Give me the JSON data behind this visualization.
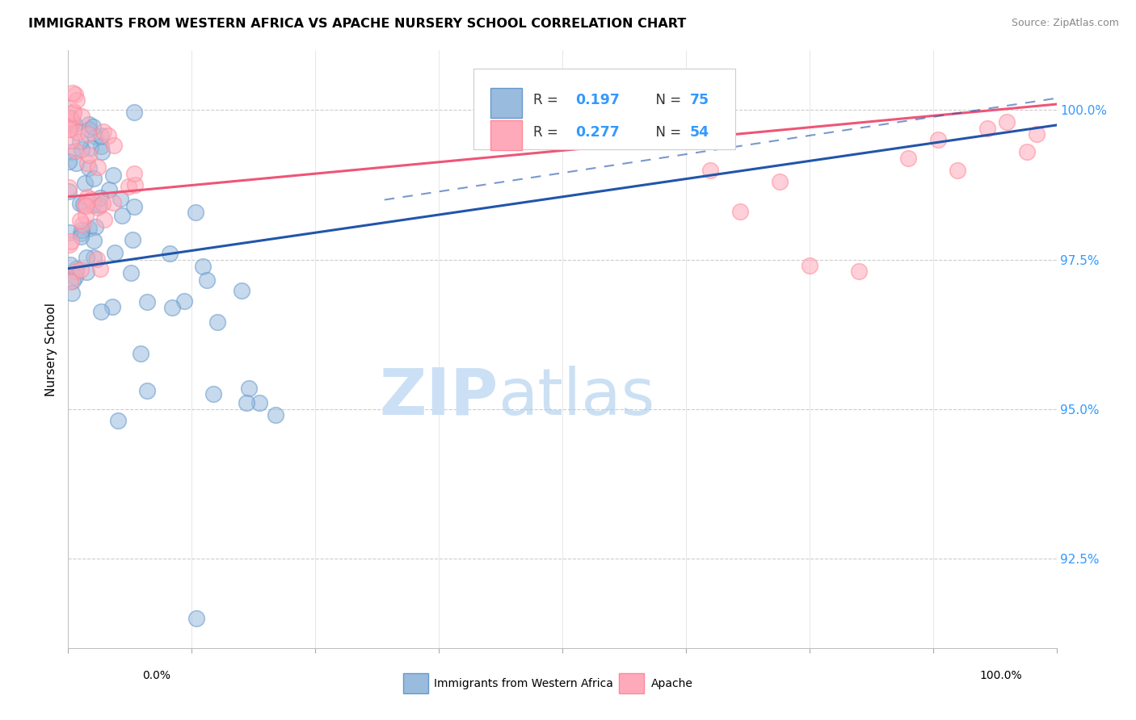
{
  "title": "IMMIGRANTS FROM WESTERN AFRICA VS APACHE NURSERY SCHOOL CORRELATION CHART",
  "source": "Source: ZipAtlas.com",
  "ylabel": "Nursery School",
  "ytick_labels": [
    "92.5%",
    "95.0%",
    "97.5%",
    "100.0%"
  ],
  "ytick_values": [
    92.5,
    95.0,
    97.5,
    100.0
  ],
  "legend_blue_r": "0.197",
  "legend_blue_n": "75",
  "legend_pink_r": "0.277",
  "legend_pink_n": "54",
  "legend_blue_label": "Immigrants from Western Africa",
  "legend_pink_label": "Apache",
  "blue_fill": "#99BBDD",
  "blue_edge": "#6699CC",
  "pink_fill": "#FFAABB",
  "pink_edge": "#FF8899",
  "blue_line_color": "#2255AA",
  "pink_line_color": "#EE5577",
  "r_color": "#3399FF",
  "n_color": "#3399FF",
  "xlim": [
    0,
    100
  ],
  "ylim": [
    91.0,
    101.0
  ],
  "blue_line_y0": 97.35,
  "blue_line_y1": 99.75,
  "pink_line_y0": 98.55,
  "pink_line_y1": 100.1,
  "blue_dash_x0": 32,
  "blue_dash_y0": 98.5,
  "blue_dash_x1": 100,
  "blue_dash_y1": 100.2
}
